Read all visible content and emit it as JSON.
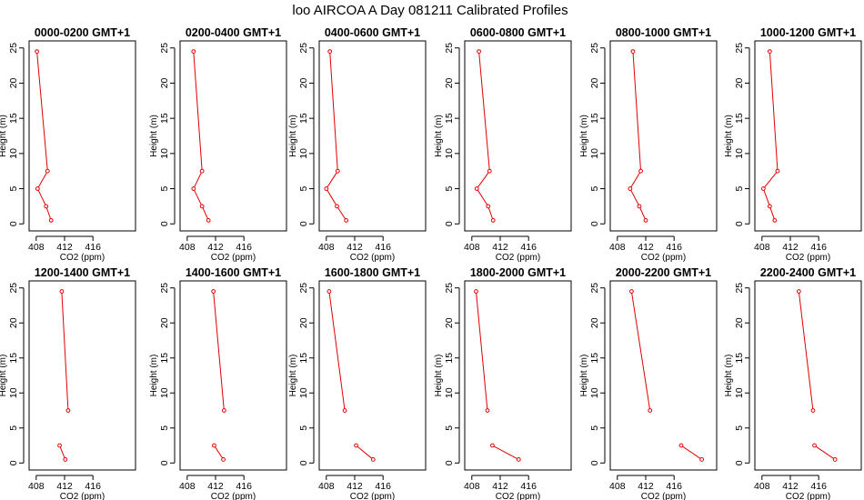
{
  "title": "loo AIRCOA A  Day 081211  Calibrated Profiles",
  "colors": {
    "series": "#e00000",
    "frame": "#000000",
    "background": "#ffffff"
  },
  "chart_data": {
    "type": "line",
    "xlabel": "CO2 (ppm)",
    "ylabel": "Height (m)",
    "xlim": [
      407,
      422
    ],
    "ylim": [
      -1,
      26
    ],
    "xticks": [
      408,
      412,
      416
    ],
    "yticks": [
      0,
      5,
      10,
      15,
      20,
      25
    ],
    "grid": false,
    "panels": [
      {
        "title": "0000-0200 GMT+1",
        "x": [
          408.1,
          409.6,
          408.2,
          409.4,
          410.1
        ],
        "y": [
          24.5,
          7.5,
          5.0,
          2.5,
          0.5
        ]
      },
      {
        "title": "0200-0400 GMT+1",
        "x": [
          408.9,
          410.1,
          408.9,
          410.1,
          411.0
        ],
        "y": [
          24.5,
          7.5,
          5.0,
          2.5,
          0.5
        ]
      },
      {
        "title": "0400-0600 GMT+1",
        "x": [
          408.5,
          409.6,
          408.0,
          409.5,
          410.8
        ],
        "y": [
          24.5,
          7.5,
          5.0,
          2.5,
          0.5
        ]
      },
      {
        "title": "0600-0800 GMT+1",
        "x": [
          409.0,
          410.5,
          408.7,
          410.3,
          411.0
        ],
        "y": [
          24.5,
          7.5,
          5.0,
          2.5,
          0.5
        ]
      },
      {
        "title": "0800-1000 GMT+1",
        "x": [
          410.2,
          411.3,
          409.8,
          411.1,
          412.0
        ],
        "y": [
          24.5,
          7.5,
          5.0,
          2.5,
          0.5
        ]
      },
      {
        "title": "1000-1200 GMT+1",
        "x": [
          409.1,
          410.2,
          408.2,
          409.1,
          409.8
        ],
        "y": [
          24.5,
          7.5,
          5.0,
          2.5,
          0.5
        ]
      },
      {
        "title": "1200-1400 GMT+1",
        "x": [
          411.6,
          412.5,
          null,
          411.3,
          412.1
        ],
        "y": [
          24.5,
          7.5,
          5.0,
          2.5,
          0.5
        ]
      },
      {
        "title": "1400-1600 GMT+1",
        "x": [
          411.7,
          413.2,
          null,
          411.8,
          413.1
        ],
        "y": [
          24.5,
          7.5,
          5.0,
          2.5,
          0.5
        ]
      },
      {
        "title": "1600-1800 GMT+1",
        "x": [
          408.4,
          410.6,
          null,
          412.2,
          414.6
        ],
        "y": [
          24.5,
          7.5,
          5.0,
          2.5,
          0.5
        ]
      },
      {
        "title": "1800-2000 GMT+1",
        "x": [
          408.6,
          410.2,
          null,
          410.9,
          414.6
        ],
        "y": [
          24.5,
          7.5,
          5.0,
          2.5,
          0.5
        ]
      },
      {
        "title": "2000-2200 GMT+1",
        "x": [
          410.0,
          412.6,
          null,
          417.0,
          419.9
        ],
        "y": [
          24.5,
          7.5,
          5.0,
          2.5,
          0.5
        ]
      },
      {
        "title": "2200-2400 GMT+1",
        "x": [
          413.2,
          415.2,
          null,
          415.4,
          418.3
        ],
        "y": [
          24.5,
          7.5,
          5.0,
          2.5,
          0.5
        ]
      }
    ]
  }
}
